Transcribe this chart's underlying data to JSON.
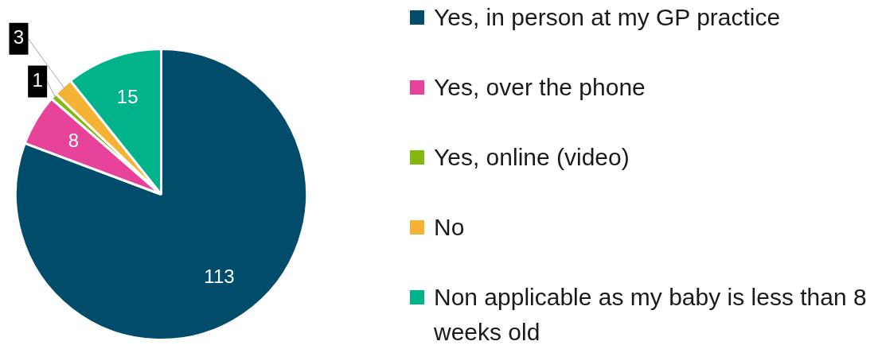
{
  "chart_data": {
    "type": "pie",
    "categories": [
      "Yes, in person at my GP practice",
      "Yes, over the phone",
      "Yes, online (video)",
      "No",
      "Non applicable as my baby is less than 8 weeks old"
    ],
    "values": [
      113,
      8,
      1,
      3,
      15
    ],
    "colors": [
      "#004c6a",
      "#e8439a",
      "#84b80e",
      "#f5b335",
      "#00b38a"
    ],
    "data_labels": true,
    "legend": "right"
  }
}
